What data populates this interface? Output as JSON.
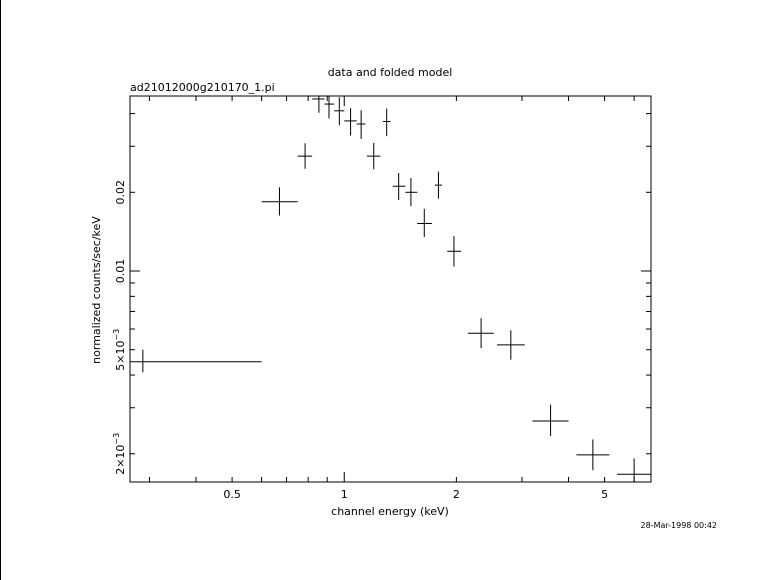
{
  "chart_data": {
    "type": "scatter",
    "title": "data and folded model",
    "subtitle": "ad21012000g210170_1.pi",
    "xlabel": "channel energy (keV)",
    "ylabel": "normalized counts/sec/keV",
    "xscale": "log",
    "yscale": "log",
    "xlim": [
      0.266,
      6.66
    ],
    "ylim": [
      0.00156,
      0.0467
    ],
    "x_ticks": [
      {
        "value": 0.5,
        "label": "0.5"
      },
      {
        "value": 1,
        "label": "1"
      },
      {
        "value": 2,
        "label": "2"
      },
      {
        "value": 5,
        "label": "5"
      }
    ],
    "y_ticks": [
      {
        "value": 0.002,
        "label": "2×10",
        "exp": "−3"
      },
      {
        "value": 0.005,
        "label": "5×10",
        "exp": "−3"
      },
      {
        "value": 0.01,
        "label": "0.01",
        "exp": ""
      },
      {
        "value": 0.02,
        "label": "0.02",
        "exp": ""
      }
    ],
    "series": [
      {
        "points": [
          {
            "x": 0.288,
            "xlo": 0.266,
            "xhi": 0.6,
            "y": 0.0045,
            "ylo": 0.0041,
            "yhi": 0.005
          },
          {
            "x": 0.67,
            "xlo": 0.6,
            "xhi": 0.75,
            "y": 0.0184,
            "ylo": 0.0163,
            "yhi": 0.0209
          },
          {
            "x": 0.785,
            "xlo": 0.75,
            "xhi": 0.82,
            "y": 0.0275,
            "ylo": 0.0246,
            "yhi": 0.0308
          },
          {
            "x": 0.855,
            "xlo": 0.82,
            "xhi": 0.885,
            "y": 0.0455,
            "ylo": 0.0403,
            "yhi": 0.0467
          },
          {
            "x": 0.91,
            "xlo": 0.885,
            "xhi": 0.94,
            "y": 0.0435,
            "ylo": 0.0383,
            "yhi": 0.0467
          },
          {
            "x": 0.97,
            "xlo": 0.94,
            "xhi": 1.0,
            "y": 0.041,
            "ylo": 0.0361,
            "yhi": 0.0462
          },
          {
            "x": 1.04,
            "xlo": 1.0,
            "xhi": 1.08,
            "y": 0.0375,
            "ylo": 0.033,
            "yhi": 0.042
          },
          {
            "x": 1.11,
            "xlo": 1.08,
            "xhi": 1.14,
            "y": 0.0365,
            "ylo": 0.032,
            "yhi": 0.0412
          },
          {
            "x": 1.2,
            "xlo": 1.15,
            "xhi": 1.25,
            "y": 0.0275,
            "ylo": 0.0245,
            "yhi": 0.0309
          },
          {
            "x": 1.3,
            "xlo": 1.27,
            "xhi": 1.33,
            "y": 0.0373,
            "ylo": 0.0328,
            "yhi": 0.0418
          },
          {
            "x": 1.4,
            "xlo": 1.35,
            "xhi": 1.46,
            "y": 0.0211,
            "ylo": 0.0187,
            "yhi": 0.0237
          },
          {
            "x": 1.51,
            "xlo": 1.46,
            "xhi": 1.57,
            "y": 0.02,
            "ylo": 0.0177,
            "yhi": 0.0227
          },
          {
            "x": 1.64,
            "xlo": 1.57,
            "xhi": 1.72,
            "y": 0.0152,
            "ylo": 0.0135,
            "yhi": 0.0173
          },
          {
            "x": 1.79,
            "xlo": 1.75,
            "xhi": 1.83,
            "y": 0.0213,
            "ylo": 0.0189,
            "yhi": 0.024
          },
          {
            "x": 1.97,
            "xlo": 1.89,
            "xhi": 2.06,
            "y": 0.0119,
            "ylo": 0.0104,
            "yhi": 0.0136
          },
          {
            "x": 2.33,
            "xlo": 2.15,
            "xhi": 2.52,
            "y": 0.00578,
            "ylo": 0.00507,
            "yhi": 0.0066
          },
          {
            "x": 2.8,
            "xlo": 2.57,
            "xhi": 3.05,
            "y": 0.00522,
            "ylo": 0.00458,
            "yhi": 0.00593
          },
          {
            "x": 3.58,
            "xlo": 3.2,
            "xhi": 4.0,
            "y": 0.00267,
            "ylo": 0.00234,
            "yhi": 0.00308
          },
          {
            "x": 4.65,
            "xlo": 4.2,
            "xhi": 5.15,
            "y": 0.00198,
            "ylo": 0.00173,
            "yhi": 0.00227
          },
          {
            "x": 6.0,
            "xlo": 5.4,
            "xhi": 6.66,
            "y": 0.00167,
            "ylo": 0.00156,
            "yhi": 0.00192
          }
        ]
      }
    ]
  },
  "footer": {
    "timestamp": "28-Mar-1998 00:42"
  }
}
